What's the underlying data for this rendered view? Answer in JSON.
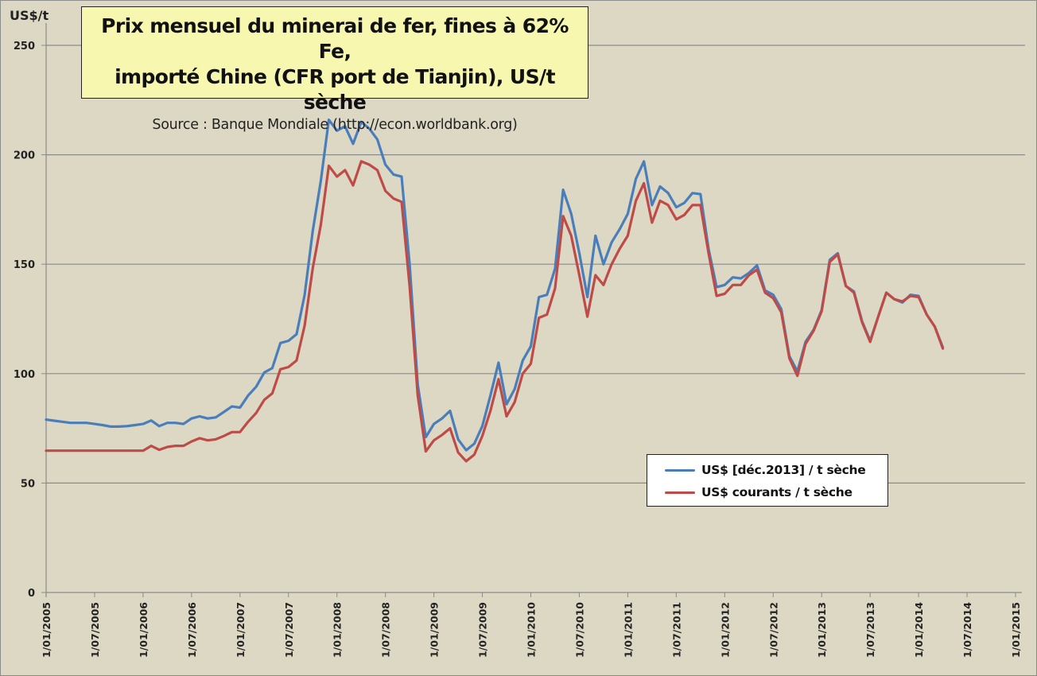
{
  "title": {
    "line1": "Prix mensuel du minerai de fer, fines à 62% Fe,",
    "line2": "importé Chine (CFR port de Tianjin), US/t sèche",
    "source": "Source : Banque Mondiale (http://econ.worldbank.org)"
  },
  "y_axis": {
    "unit_label": "US$/t",
    "ticks": [
      "0",
      "50",
      "100",
      "150",
      "200",
      "250"
    ]
  },
  "x_axis": {
    "ticks": [
      "1/01/2005",
      "1/07/2005",
      "1/01/2006",
      "1/07/2006",
      "1/01/2007",
      "1/07/2007",
      "1/01/2008",
      "1/07/2008",
      "1/01/2009",
      "1/07/2009",
      "1/01/2010",
      "1/07/2010",
      "1/01/2011",
      "1/07/2011",
      "1/01/2012",
      "1/07/2012",
      "1/01/2013",
      "1/07/2013",
      "1/01/2014",
      "1/07/2014",
      "1/01/2015"
    ]
  },
  "legend": {
    "items": [
      {
        "label": "US$ [déc.2013] / t sèche",
        "color": "#4a7ebb"
      },
      {
        "label": "US$ courants / t sèche",
        "color": "#be4b48"
      }
    ]
  },
  "chart_data": {
    "type": "line",
    "title": "Prix mensuel du minerai de fer, fines à 62% Fe, importé Chine (CFR port de Tianjin), US/t sèche",
    "subtitle": "Source : Banque Mondiale (http://econ.worldbank.org)",
    "xlabel": "",
    "ylabel": "US$/t",
    "ylim": [
      0,
      250
    ],
    "xlim": [
      "2005-01",
      "2015-01"
    ],
    "grid": true,
    "legend_position": "inside bottom-right",
    "x": [
      "2005-01",
      "2005-02",
      "2005-03",
      "2005-04",
      "2005-05",
      "2005-06",
      "2005-07",
      "2005-08",
      "2005-09",
      "2005-10",
      "2005-11",
      "2005-12",
      "2006-01",
      "2006-02",
      "2006-03",
      "2006-04",
      "2006-05",
      "2006-06",
      "2006-07",
      "2006-08",
      "2006-09",
      "2006-10",
      "2006-11",
      "2006-12",
      "2007-01",
      "2007-02",
      "2007-03",
      "2007-04",
      "2007-05",
      "2007-06",
      "2007-07",
      "2007-08",
      "2007-09",
      "2007-10",
      "2007-11",
      "2007-12",
      "2008-01",
      "2008-02",
      "2008-03",
      "2008-04",
      "2008-05",
      "2008-06",
      "2008-07",
      "2008-08",
      "2008-09",
      "2008-10",
      "2008-11",
      "2008-12",
      "2009-01",
      "2009-02",
      "2009-03",
      "2009-04",
      "2009-05",
      "2009-06",
      "2009-07",
      "2009-08",
      "2009-09",
      "2009-10",
      "2009-11",
      "2009-12",
      "2010-01",
      "2010-02",
      "2010-03",
      "2010-04",
      "2010-05",
      "2010-06",
      "2010-07",
      "2010-08",
      "2010-09",
      "2010-10",
      "2010-11",
      "2010-12",
      "2011-01",
      "2011-02",
      "2011-03",
      "2011-04",
      "2011-05",
      "2011-06",
      "2011-07",
      "2011-08",
      "2011-09",
      "2011-10",
      "2011-11",
      "2011-12",
      "2012-01",
      "2012-02",
      "2012-03",
      "2012-04",
      "2012-05",
      "2012-06",
      "2012-07",
      "2012-08",
      "2012-09",
      "2012-10",
      "2012-11",
      "2012-12",
      "2013-01",
      "2013-02",
      "2013-03",
      "2013-04",
      "2013-05",
      "2013-06",
      "2013-07",
      "2013-08",
      "2013-09",
      "2013-10",
      "2013-11",
      "2013-12",
      "2014-01",
      "2014-02",
      "2014-03",
      "2014-04",
      "2014-05"
    ],
    "series": [
      {
        "name": "US$ [déc.2013] / t sèche",
        "color": "#4a7ebb",
        "values": [
          79,
          78.5,
          78,
          77.5,
          77.5,
          77.5,
          77,
          76.5,
          75.8,
          75.8,
          76,
          76.5,
          77,
          78.6,
          76,
          77.5,
          77.5,
          77,
          79.5,
          80.5,
          79.5,
          80,
          82.5,
          85,
          84.5,
          90,
          94,
          100.5,
          102.5,
          114,
          115,
          118,
          136,
          165,
          188,
          216,
          211,
          213,
          205,
          215,
          212,
          207,
          195.5,
          191,
          190,
          150,
          95,
          71,
          77,
          79.5,
          83,
          70,
          65,
          68,
          76,
          90,
          105,
          86,
          93,
          106,
          112.5,
          135,
          136,
          148,
          184,
          173,
          155,
          135,
          163,
          150,
          160,
          166,
          173,
          189,
          197,
          177,
          185.5,
          182.5,
          176,
          178,
          182.5,
          182,
          157,
          139.5,
          140.5,
          144,
          143.5,
          146,
          149.5,
          138,
          136,
          129.5,
          108,
          101,
          114.5,
          120,
          129,
          152,
          155,
          140,
          137.5,
          124,
          115,
          126,
          137,
          134,
          132.5,
          136,
          135.5,
          127,
          121.5,
          112
        ]
      },
      {
        "name": "US$ courants / t sèche",
        "color": "#be4b48",
        "values": [
          64.8,
          64.8,
          64.8,
          64.8,
          64.8,
          64.8,
          64.8,
          64.8,
          64.8,
          64.8,
          64.8,
          64.8,
          64.8,
          67,
          65.2,
          66.5,
          67,
          67,
          69,
          70.5,
          69.5,
          70,
          71.5,
          73.3,
          73.3,
          78,
          82,
          88,
          91,
          102,
          103,
          106,
          122,
          148,
          168,
          195,
          190,
          193,
          186,
          197,
          195.5,
          193,
          183.5,
          180,
          178.5,
          140,
          90,
          64.5,
          69.5,
          72,
          75,
          64,
          60,
          63,
          71.5,
          83,
          97.5,
          80.5,
          87,
          100,
          104.5,
          125.5,
          127,
          139,
          172,
          163,
          145,
          126,
          145,
          140.5,
          150,
          157,
          163,
          179,
          187,
          169,
          179,
          177,
          170.5,
          172.5,
          177,
          177,
          155,
          135.5,
          136.5,
          140.5,
          140.5,
          145,
          147.5,
          137,
          134.5,
          128,
          107,
          99,
          113.5,
          119.5,
          128.5,
          151,
          154.5,
          140,
          137,
          123.5,
          114.5,
          126,
          137,
          134,
          133,
          135.5,
          135,
          127,
          121.5,
          111.5
        ]
      }
    ]
  }
}
